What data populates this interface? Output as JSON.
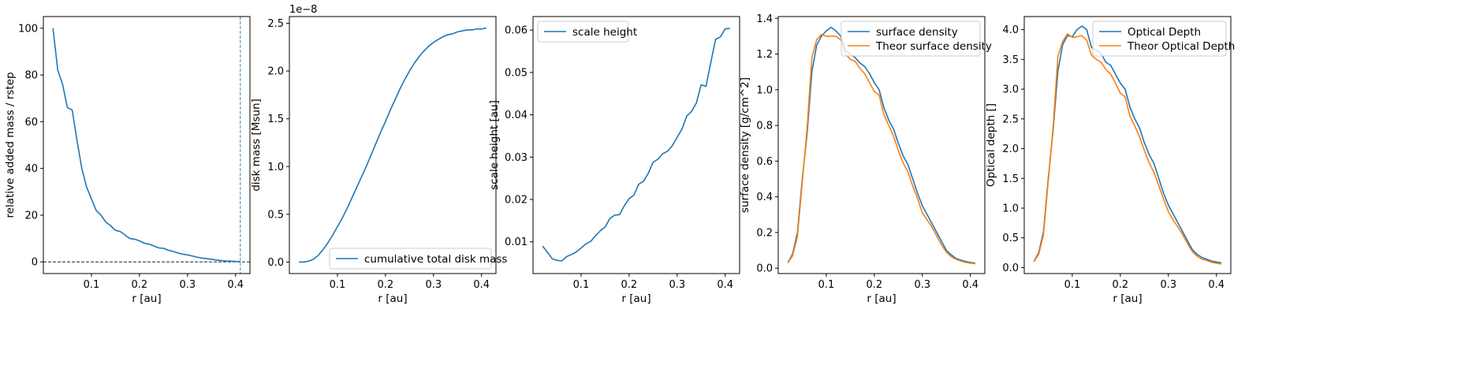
{
  "colors": {
    "c0": "#1f77b4",
    "c1": "#ff7f0e",
    "axis": "#000000",
    "refline": "#000000",
    "vline": "#1f77b4"
  },
  "chart_data": [
    {
      "type": "line",
      "xlabel": "r [au]",
      "ylabel": "relative added mass / rstep",
      "xlim": [
        0.0,
        0.43
      ],
      "ylim": [
        -5,
        105
      ],
      "xticks": [
        0.1,
        0.2,
        0.3,
        0.4
      ],
      "xtick_labels": [
        "0.1",
        "0.2",
        "0.3",
        "0.4"
      ],
      "yticks": [
        0,
        20,
        40,
        60,
        80,
        100
      ],
      "ytick_labels": [
        "0",
        "20",
        "40",
        "60",
        "80",
        "100"
      ],
      "legend": null,
      "hline": 0,
      "vline": 0.41,
      "series": [
        {
          "color": "c0",
          "x": [
            0.02,
            0.03,
            0.04,
            0.05,
            0.06,
            0.07,
            0.08,
            0.09,
            0.1,
            0.11,
            0.12,
            0.13,
            0.14,
            0.15,
            0.16,
            0.17,
            0.18,
            0.19,
            0.2,
            0.21,
            0.22,
            0.23,
            0.24,
            0.25,
            0.26,
            0.27,
            0.28,
            0.29,
            0.3,
            0.31,
            0.32,
            0.33,
            0.34,
            0.35,
            0.36,
            0.37,
            0.38,
            0.39,
            0.4,
            0.41
          ],
          "y": [
            100,
            82,
            76,
            66,
            65,
            52,
            40,
            32,
            27,
            22,
            20,
            17,
            15.5,
            13.5,
            13,
            11.5,
            10,
            9.7,
            9,
            8,
            7.6,
            6.8,
            6,
            5.8,
            5,
            4.5,
            3.8,
            3.3,
            3,
            2.5,
            2,
            1.6,
            1.4,
            1.1,
            0.8,
            0.6,
            0.4,
            0.3,
            0.2,
            0.1
          ]
        }
      ]
    },
    {
      "type": "line",
      "xlabel": "r [au]",
      "ylabel": "disk mass [Msun]",
      "offset_text": "1e−8",
      "xlim": [
        0.0,
        0.43
      ],
      "ylim": [
        -0.12,
        2.57
      ],
      "xticks": [
        0.1,
        0.2,
        0.3,
        0.4
      ],
      "xtick_labels": [
        "0.1",
        "0.2",
        "0.3",
        "0.4"
      ],
      "yticks": [
        0.0,
        0.5,
        1.0,
        1.5,
        2.0,
        2.5
      ],
      "ytick_labels": [
        "0.0",
        "0.5",
        "1.0",
        "1.5",
        "2.0",
        "2.5"
      ],
      "legend": {
        "position": "lower right",
        "entries": [
          "cumulative total disk mass"
        ]
      },
      "series": [
        {
          "color": "c0",
          "x": [
            0.02,
            0.03,
            0.04,
            0.05,
            0.06,
            0.07,
            0.08,
            0.09,
            0.1,
            0.11,
            0.12,
            0.13,
            0.14,
            0.15,
            0.16,
            0.17,
            0.18,
            0.19,
            0.2,
            0.21,
            0.22,
            0.23,
            0.24,
            0.25,
            0.26,
            0.27,
            0.28,
            0.29,
            0.3,
            0.31,
            0.32,
            0.33,
            0.34,
            0.35,
            0.36,
            0.37,
            0.38,
            0.39,
            0.4,
            0.41
          ],
          "y": [
            0.0,
            0.0,
            0.01,
            0.03,
            0.07,
            0.13,
            0.2,
            0.28,
            0.37,
            0.46,
            0.56,
            0.67,
            0.78,
            0.89,
            1.0,
            1.12,
            1.24,
            1.36,
            1.47,
            1.59,
            1.7,
            1.81,
            1.91,
            2.0,
            2.08,
            2.15,
            2.21,
            2.26,
            2.3,
            2.33,
            2.36,
            2.38,
            2.39,
            2.41,
            2.42,
            2.43,
            2.43,
            2.44,
            2.44,
            2.45
          ]
        }
      ]
    },
    {
      "type": "line",
      "xlabel": "r [au]",
      "ylabel": "scale height [au]",
      "xlim": [
        0.0,
        0.43
      ],
      "ylim": [
        0.0025,
        0.0632
      ],
      "xticks": [
        0.1,
        0.2,
        0.3,
        0.4
      ],
      "xtick_labels": [
        "0.1",
        "0.2",
        "0.3",
        "0.4"
      ],
      "yticks": [
        0.01,
        0.02,
        0.03,
        0.04,
        0.05,
        0.06
      ],
      "ytick_labels": [
        "0.01",
        "0.02",
        "0.03",
        "0.04",
        "0.05",
        "0.06"
      ],
      "legend": {
        "position": "upper left",
        "entries": [
          "scale height"
        ]
      },
      "series": [
        {
          "color": "c0",
          "x": [
            0.02,
            0.03,
            0.04,
            0.05,
            0.06,
            0.07,
            0.08,
            0.09,
            0.1,
            0.11,
            0.12,
            0.13,
            0.14,
            0.15,
            0.16,
            0.17,
            0.18,
            0.19,
            0.2,
            0.21,
            0.22,
            0.23,
            0.24,
            0.25,
            0.26,
            0.27,
            0.28,
            0.29,
            0.3,
            0.31,
            0.32,
            0.33,
            0.34,
            0.35,
            0.36,
            0.37,
            0.38,
            0.39,
            0.4,
            0.41
          ],
          "y": [
            0.009,
            0.0075,
            0.006,
            0.0056,
            0.0055,
            0.0065,
            0.007,
            0.0076,
            0.0085,
            0.0095,
            0.0101,
            0.0114,
            0.0126,
            0.0135,
            0.0155,
            0.0163,
            0.0164,
            0.0185,
            0.0202,
            0.021,
            0.0236,
            0.0243,
            0.0262,
            0.0288,
            0.0295,
            0.0308,
            0.0314,
            0.0327,
            0.0347,
            0.0366,
            0.0397,
            0.0408,
            0.0428,
            0.0471,
            0.0467,
            0.0523,
            0.0578,
            0.0584,
            0.0603,
            0.0604
          ]
        }
      ]
    },
    {
      "type": "line",
      "xlabel": "r [au]",
      "ylabel": "surface density [g/cm^2]",
      "xlim": [
        0.0,
        0.43
      ],
      "ylim": [
        -0.03,
        1.41
      ],
      "xticks": [
        0.1,
        0.2,
        0.3,
        0.4
      ],
      "xtick_labels": [
        "0.1",
        "0.2",
        "0.3",
        "0.4"
      ],
      "yticks": [
        0.0,
        0.2,
        0.4,
        0.6,
        0.8,
        1.0,
        1.2,
        1.4
      ],
      "ytick_labels": [
        "0.0",
        "0.2",
        "0.4",
        "0.6",
        "0.8",
        "1.0",
        "1.2",
        "1.4"
      ],
      "legend": {
        "position": "upper right",
        "entries": [
          "surface density",
          "Theor surface density"
        ]
      },
      "series": [
        {
          "name": "surface density",
          "color": "c0",
          "x": [
            0.02,
            0.03,
            0.04,
            0.05,
            0.06,
            0.07,
            0.08,
            0.09,
            0.1,
            0.11,
            0.12,
            0.13,
            0.14,
            0.15,
            0.16,
            0.17,
            0.18,
            0.19,
            0.2,
            0.21,
            0.22,
            0.23,
            0.24,
            0.25,
            0.26,
            0.27,
            0.28,
            0.29,
            0.3,
            0.31,
            0.32,
            0.33,
            0.34,
            0.35,
            0.36,
            0.37,
            0.38,
            0.39,
            0.4,
            0.41
          ],
          "y": [
            0.03,
            0.08,
            0.2,
            0.5,
            0.75,
            1.1,
            1.25,
            1.3,
            1.33,
            1.35,
            1.33,
            1.3,
            1.22,
            1.2,
            1.18,
            1.15,
            1.13,
            1.09,
            1.04,
            1.0,
            0.9,
            0.83,
            0.78,
            0.7,
            0.63,
            0.58,
            0.5,
            0.42,
            0.35,
            0.3,
            0.25,
            0.2,
            0.15,
            0.1,
            0.075,
            0.055,
            0.045,
            0.038,
            0.032,
            0.028
          ]
        },
        {
          "name": "Theor surface density",
          "color": "c1",
          "x": [
            0.02,
            0.03,
            0.04,
            0.05,
            0.06,
            0.07,
            0.08,
            0.09,
            0.1,
            0.11,
            0.12,
            0.13,
            0.14,
            0.15,
            0.16,
            0.17,
            0.18,
            0.19,
            0.2,
            0.21,
            0.22,
            0.23,
            0.24,
            0.25,
            0.26,
            0.27,
            0.28,
            0.29,
            0.3,
            0.31,
            0.32,
            0.33,
            0.34,
            0.35,
            0.36,
            0.37,
            0.38,
            0.39,
            0.4,
            0.41
          ],
          "y": [
            0.03,
            0.07,
            0.18,
            0.48,
            0.78,
            1.18,
            1.28,
            1.31,
            1.3,
            1.3,
            1.3,
            1.28,
            1.2,
            1.17,
            1.16,
            1.12,
            1.09,
            1.04,
            0.99,
            0.97,
            0.86,
            0.8,
            0.74,
            0.66,
            0.59,
            0.54,
            0.46,
            0.39,
            0.31,
            0.27,
            0.23,
            0.18,
            0.13,
            0.09,
            0.065,
            0.05,
            0.04,
            0.033,
            0.028,
            0.025
          ]
        }
      ]
    },
    {
      "type": "line",
      "xlabel": "r [au]",
      "ylabel": "Optical depth []",
      "xlim": [
        0.0,
        0.43
      ],
      "ylim": [
        -0.1,
        4.22
      ],
      "xticks": [
        0.1,
        0.2,
        0.3,
        0.4
      ],
      "xtick_labels": [
        "0.1",
        "0.2",
        "0.3",
        "0.4"
      ],
      "yticks": [
        0.0,
        0.5,
        1.0,
        1.5,
        2.0,
        2.5,
        3.0,
        3.5,
        4.0
      ],
      "ytick_labels": [
        "0.0",
        "0.5",
        "1.0",
        "1.5",
        "2.0",
        "2.5",
        "3.0",
        "3.5",
        "4.0"
      ],
      "legend": {
        "position": "upper right",
        "entries": [
          "Optical Depth",
          "Theor Optical Depth"
        ]
      },
      "series": [
        {
          "name": "Optical Depth",
          "color": "c0",
          "x": [
            0.02,
            0.03,
            0.04,
            0.05,
            0.06,
            0.07,
            0.08,
            0.09,
            0.1,
            0.11,
            0.12,
            0.13,
            0.14,
            0.15,
            0.16,
            0.17,
            0.18,
            0.19,
            0.2,
            0.21,
            0.22,
            0.23,
            0.24,
            0.25,
            0.26,
            0.27,
            0.28,
            0.29,
            0.3,
            0.31,
            0.32,
            0.33,
            0.34,
            0.35,
            0.36,
            0.37,
            0.38,
            0.39,
            0.4,
            0.41
          ],
          "y": [
            0.1,
            0.25,
            0.6,
            1.5,
            2.3,
            3.3,
            3.75,
            3.9,
            3.88,
            4.0,
            4.06,
            4.0,
            3.7,
            3.65,
            3.6,
            3.45,
            3.4,
            3.25,
            3.1,
            3.0,
            2.7,
            2.5,
            2.35,
            2.1,
            1.9,
            1.75,
            1.5,
            1.25,
            1.05,
            0.9,
            0.75,
            0.6,
            0.45,
            0.3,
            0.22,
            0.17,
            0.14,
            0.11,
            0.095,
            0.08
          ]
        },
        {
          "name": "Theor Optical Depth",
          "color": "c1",
          "x": [
            0.02,
            0.03,
            0.04,
            0.05,
            0.06,
            0.07,
            0.08,
            0.09,
            0.1,
            0.11,
            0.12,
            0.13,
            0.14,
            0.15,
            0.16,
            0.17,
            0.18,
            0.19,
            0.2,
            0.21,
            0.22,
            0.23,
            0.24,
            0.25,
            0.26,
            0.27,
            0.28,
            0.29,
            0.3,
            0.31,
            0.32,
            0.33,
            0.34,
            0.35,
            0.36,
            0.37,
            0.38,
            0.39,
            0.4,
            0.41
          ],
          "y": [
            0.1,
            0.22,
            0.55,
            1.45,
            2.35,
            3.55,
            3.8,
            3.93,
            3.87,
            3.88,
            3.9,
            3.82,
            3.57,
            3.5,
            3.45,
            3.33,
            3.25,
            3.1,
            2.93,
            2.87,
            2.55,
            2.38,
            2.2,
            1.97,
            1.76,
            1.6,
            1.38,
            1.15,
            0.94,
            0.8,
            0.68,
            0.55,
            0.4,
            0.27,
            0.19,
            0.14,
            0.12,
            0.09,
            0.075,
            0.06
          ]
        }
      ]
    }
  ]
}
